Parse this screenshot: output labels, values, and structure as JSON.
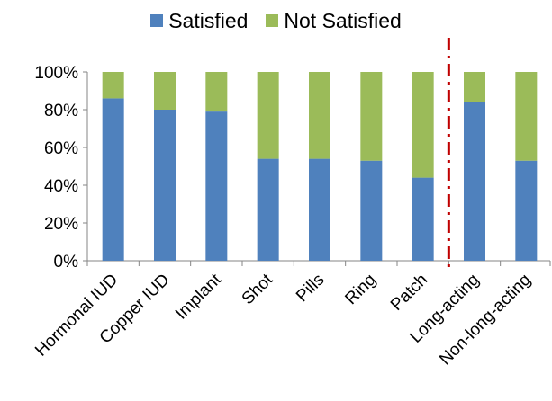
{
  "chart_data": {
    "type": "bar",
    "stacked": true,
    "categories": [
      "Hormonal IUD",
      "Copper IUD",
      "Implant",
      "Shot",
      "Pills",
      "Ring",
      "Patch",
      "Long-acting",
      "Non-long-acting"
    ],
    "series": [
      {
        "name": "Satisfied",
        "color": "#4f81bd",
        "values": [
          86,
          80,
          79,
          54,
          54,
          53,
          44,
          84,
          53
        ]
      },
      {
        "name": "Not Satisfied",
        "color": "#9bbb59",
        "values": [
          14,
          20,
          21,
          46,
          46,
          47,
          56,
          16,
          47
        ]
      }
    ],
    "yticks": [
      "0%",
      "20%",
      "40%",
      "60%",
      "80%",
      "100%"
    ],
    "ylim": [
      0,
      100
    ],
    "grid": false,
    "legend_position": "top",
    "divider": {
      "between": [
        "Patch",
        "Long-acting"
      ],
      "color": "#c00000",
      "style": "dash-dot"
    }
  }
}
